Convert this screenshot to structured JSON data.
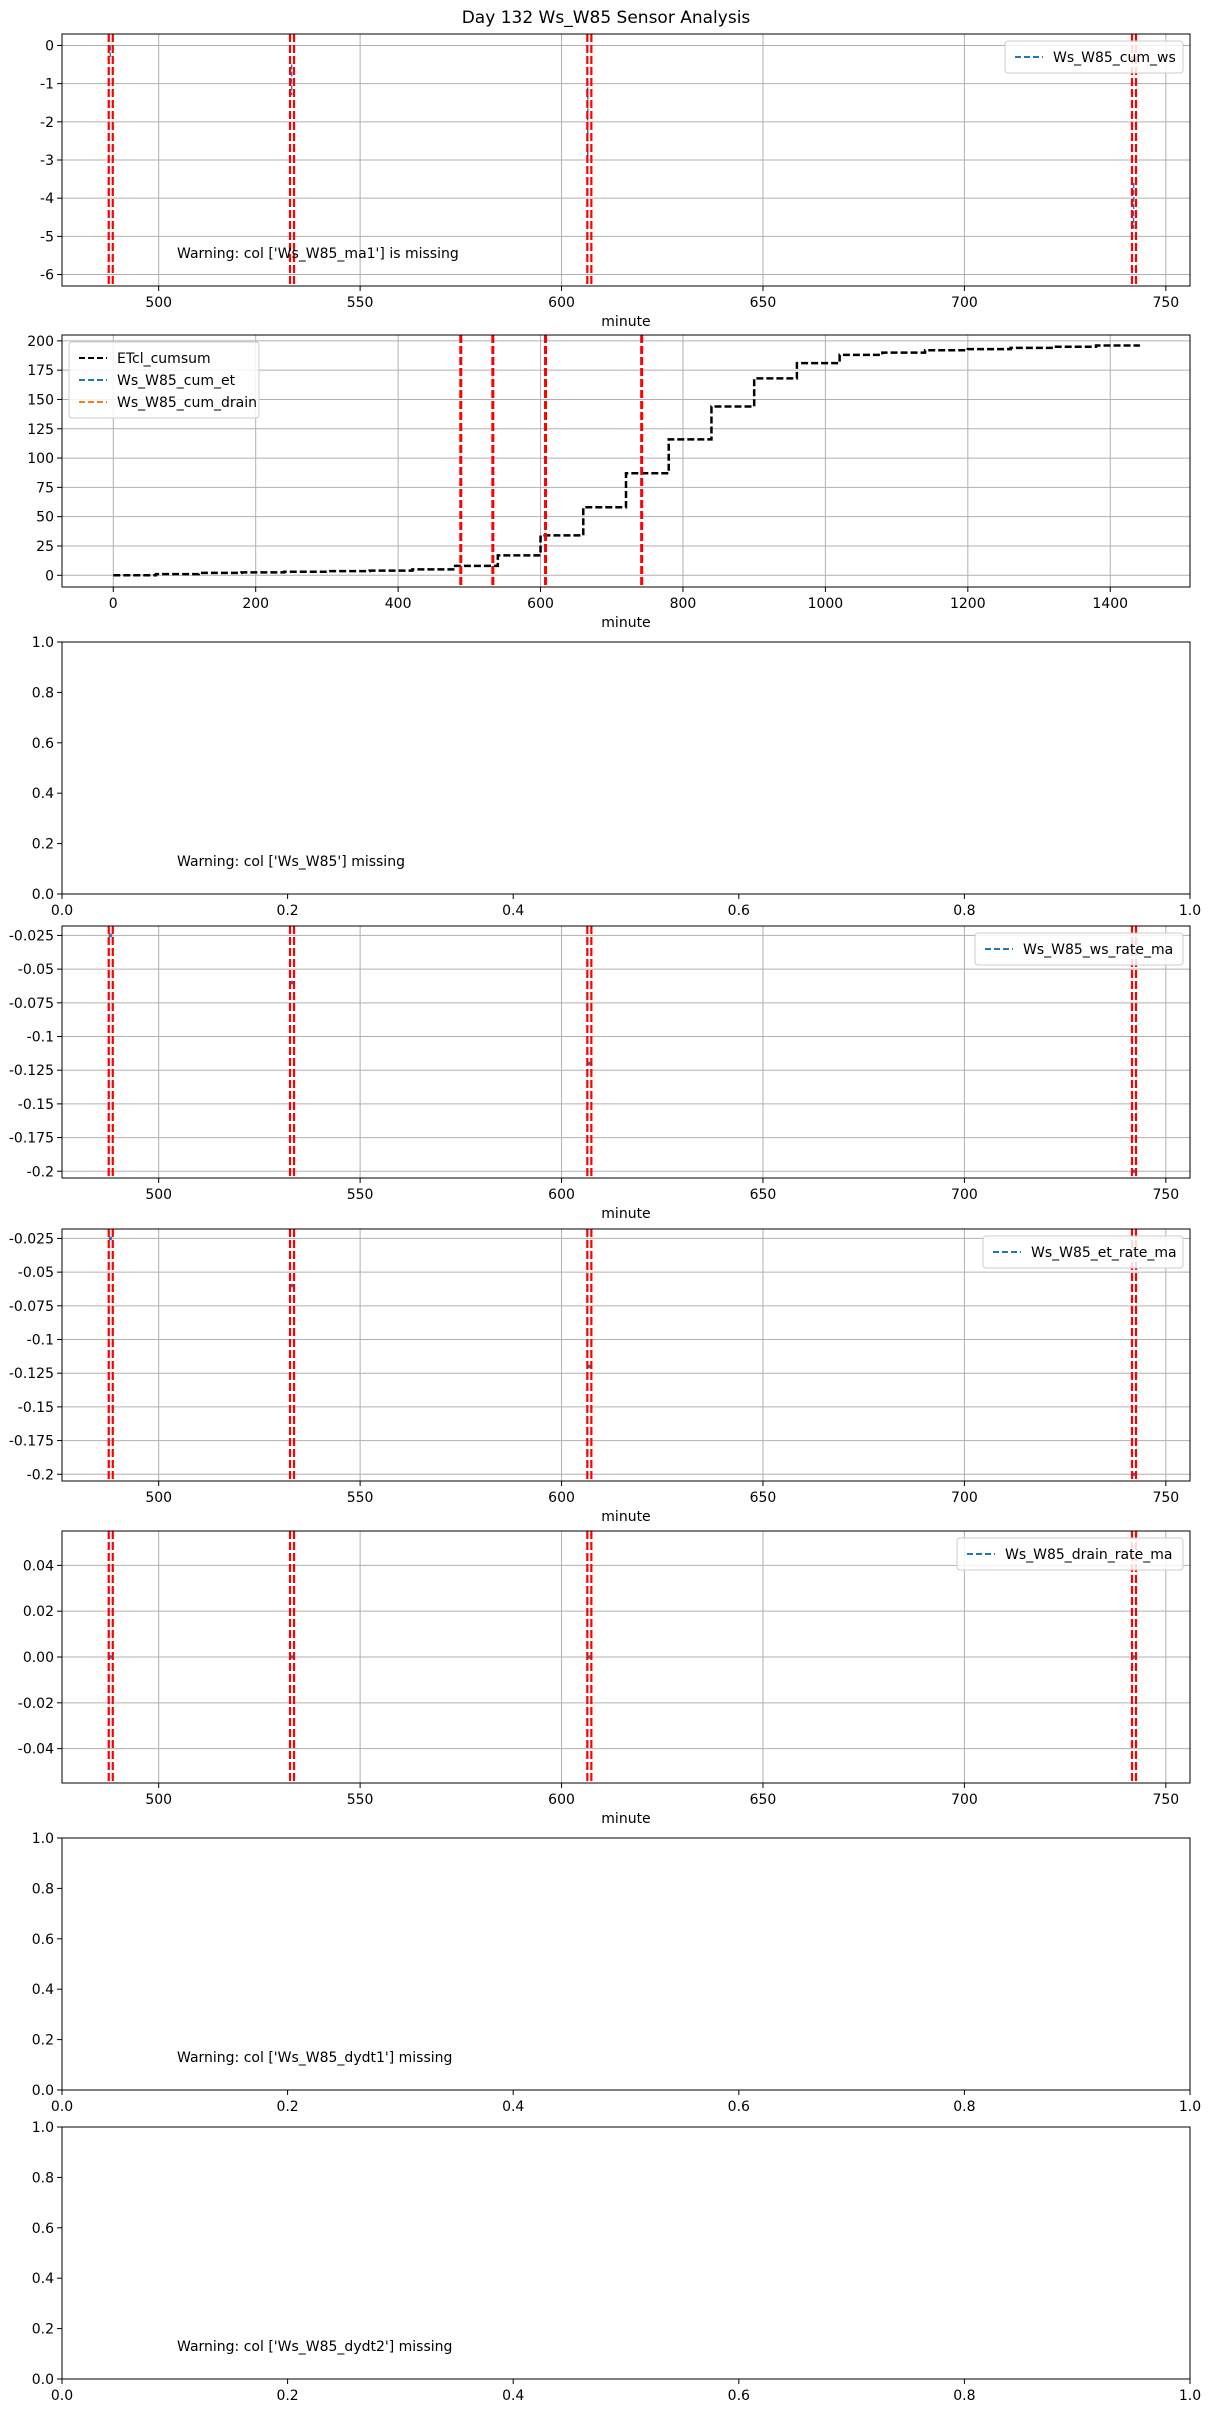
{
  "figure": {
    "title": "Day 132 Ws_W85 Sensor Analysis"
  },
  "colors": {
    "event_lines": "#ff0000",
    "grid": "#b0b0b0",
    "series_blue": "#1f77b4",
    "series_orange": "#ff7f0e",
    "series_black": "#000000"
  },
  "chart_data": [
    {
      "id": "p1",
      "type": "line",
      "xlabel": "minute",
      "ylabel": "",
      "xlim": [
        476,
        756
      ],
      "ylim": [
        -6.3,
        0.3
      ],
      "xticks": [
        500,
        550,
        600,
        650,
        700,
        750
      ],
      "yticks": [
        0,
        -1,
        -2,
        -3,
        -4,
        -5,
        -6
      ],
      "grid": true,
      "legend": "top-right",
      "series": [
        {
          "name": "Ws_W85_cum_ws",
          "color": "#1f77b4",
          "dash": true,
          "segments": [
            [
              [
                488,
                0.0
              ],
              [
                488,
                -0.3
              ]
            ],
            [
              [
                533,
                -0.5
              ],
              [
                533,
                -1.3
              ]
            ],
            [
              [
                606.5,
                -1.1
              ],
              [
                606.5,
                -2.9
              ]
            ],
            [
              [
                742,
                -3.6
              ],
              [
                742,
                -4.8
              ]
            ]
          ]
        }
      ],
      "event_lines": [
        487.6,
        488.6,
        532.6,
        533.6,
        606.4,
        607.4,
        741.6,
        742.6
      ],
      "warning": "Warning: col ['Ws_W85_ma1'] is missing"
    },
    {
      "id": "p2",
      "type": "line",
      "xlabel": "minute",
      "ylabel": "",
      "xlim": [
        -72,
        1512
      ],
      "ylim": [
        -10,
        205
      ],
      "xticks": [
        0,
        200,
        400,
        600,
        800,
        1000,
        1200,
        1400
      ],
      "yticks": [
        0,
        25,
        50,
        75,
        100,
        125,
        150,
        175,
        200
      ],
      "grid": true,
      "legend": "top-left",
      "series": [
        {
          "name": "ETcl_cumsum",
          "color": "#000000",
          "dash": true,
          "step": true,
          "x": [
            0,
            60,
            120,
            180,
            240,
            300,
            360,
            420,
            480,
            540,
            600,
            660,
            720,
            780,
            840,
            900,
            960,
            1020,
            1080,
            1140,
            1200,
            1260,
            1320,
            1380,
            1440
          ],
          "y": [
            0,
            1,
            2,
            2.5,
            3,
            3.5,
            4,
            5,
            8,
            17,
            34,
            58,
            87,
            116,
            144,
            168,
            181,
            188,
            190,
            192,
            193,
            194,
            195,
            196,
            197
          ]
        },
        {
          "name": "Ws_W85_cum_et",
          "color": "#1f77b4",
          "dash": true,
          "x": [],
          "y": []
        },
        {
          "name": "Ws_W85_cum_drain",
          "color": "#ff7f0e",
          "dash": true,
          "x": [],
          "y": []
        }
      ],
      "event_lines": [
        488,
        533,
        607,
        742
      ]
    },
    {
      "id": "p3",
      "type": "line",
      "xlabel": "",
      "ylabel": "",
      "xlim": [
        0,
        1
      ],
      "ylim": [
        0,
        1
      ],
      "xticks": [
        0.0,
        0.2,
        0.4,
        0.6,
        0.8,
        1.0
      ],
      "yticks": [
        0.0,
        0.2,
        0.4,
        0.6,
        0.8,
        1.0
      ],
      "grid": false,
      "series": [],
      "warning": "Warning: col ['Ws_W85'] missing"
    },
    {
      "id": "p4",
      "type": "line",
      "xlabel": "minute",
      "ylabel": "",
      "xlim": [
        476,
        756
      ],
      "ylim": [
        -0.205,
        -0.018
      ],
      "xticks": [
        500,
        550,
        600,
        650,
        700,
        750
      ],
      "yticks": [
        -0.025,
        -0.05,
        -0.075,
        -0.1,
        -0.125,
        -0.15,
        -0.175,
        -0.2
      ],
      "grid": true,
      "legend": "top-right",
      "series": [
        {
          "name": "Ws_W85_ws_rate_ma",
          "color": "#1f77b4",
          "dash": true,
          "points": [
            [
              488,
              -0.025
            ],
            [
              533,
              -0.06
            ],
            [
              607,
              -0.12
            ],
            [
              742,
              -0.2
            ]
          ]
        }
      ],
      "event_lines": [
        487.6,
        488.6,
        532.6,
        533.6,
        606.4,
        607.4,
        741.6,
        742.6
      ]
    },
    {
      "id": "p5",
      "type": "line",
      "xlabel": "minute",
      "ylabel": "",
      "xlim": [
        476,
        756
      ],
      "ylim": [
        -0.205,
        -0.018
      ],
      "xticks": [
        500,
        550,
        600,
        650,
        700,
        750
      ],
      "yticks": [
        -0.025,
        -0.05,
        -0.075,
        -0.1,
        -0.125,
        -0.15,
        -0.175,
        -0.2
      ],
      "grid": true,
      "legend": "top-right",
      "series": [
        {
          "name": "Ws_W85_et_rate_ma",
          "color": "#1f77b4",
          "dash": true,
          "points": [
            [
              488,
              -0.025
            ],
            [
              533,
              -0.06
            ],
            [
              607,
              -0.12
            ],
            [
              742,
              -0.2
            ]
          ]
        }
      ],
      "event_lines": [
        487.6,
        488.6,
        532.6,
        533.6,
        606.4,
        607.4,
        741.6,
        742.6
      ]
    },
    {
      "id": "p6",
      "type": "line",
      "xlabel": "minute",
      "ylabel": "",
      "xlim": [
        476,
        756
      ],
      "ylim": [
        -0.055,
        0.055
      ],
      "xticks": [
        500,
        550,
        600,
        650,
        700,
        750
      ],
      "yticks": [
        0.04,
        0.02,
        0.0,
        -0.02,
        -0.04
      ],
      "ytick_labels": [
        "0.04",
        "0.02",
        "0.00",
        "-0.02",
        "-0.04"
      ],
      "grid": true,
      "legend": "top-right",
      "series": [
        {
          "name": "Ws_W85_drain_rate_ma",
          "color": "#1f77b4",
          "dash": true,
          "points": [
            [
              488,
              0
            ],
            [
              533,
              0
            ],
            [
              607,
              0
            ],
            [
              742,
              0
            ]
          ]
        }
      ],
      "event_lines": [
        487.6,
        488.6,
        532.6,
        533.6,
        606.4,
        607.4,
        741.6,
        742.6
      ]
    },
    {
      "id": "p7",
      "type": "line",
      "xlabel": "",
      "ylabel": "",
      "xlim": [
        0,
        1
      ],
      "ylim": [
        0,
        1
      ],
      "xticks": [
        0.0,
        0.2,
        0.4,
        0.6,
        0.8,
        1.0
      ],
      "yticks": [
        0.0,
        0.2,
        0.4,
        0.6,
        0.8,
        1.0
      ],
      "grid": false,
      "series": [],
      "warning": "Warning: col ['Ws_W85_dydt1'] missing"
    },
    {
      "id": "p8",
      "type": "line",
      "xlabel": "",
      "ylabel": "",
      "xlim": [
        0,
        1
      ],
      "ylim": [
        0,
        1
      ],
      "xticks": [
        0.0,
        0.2,
        0.4,
        0.6,
        0.8,
        1.0
      ],
      "yticks": [
        0.0,
        0.2,
        0.4,
        0.6,
        0.8,
        1.0
      ],
      "grid": false,
      "series": [],
      "warning": "Warning: col ['Ws_W85_dydt2'] missing"
    }
  ]
}
